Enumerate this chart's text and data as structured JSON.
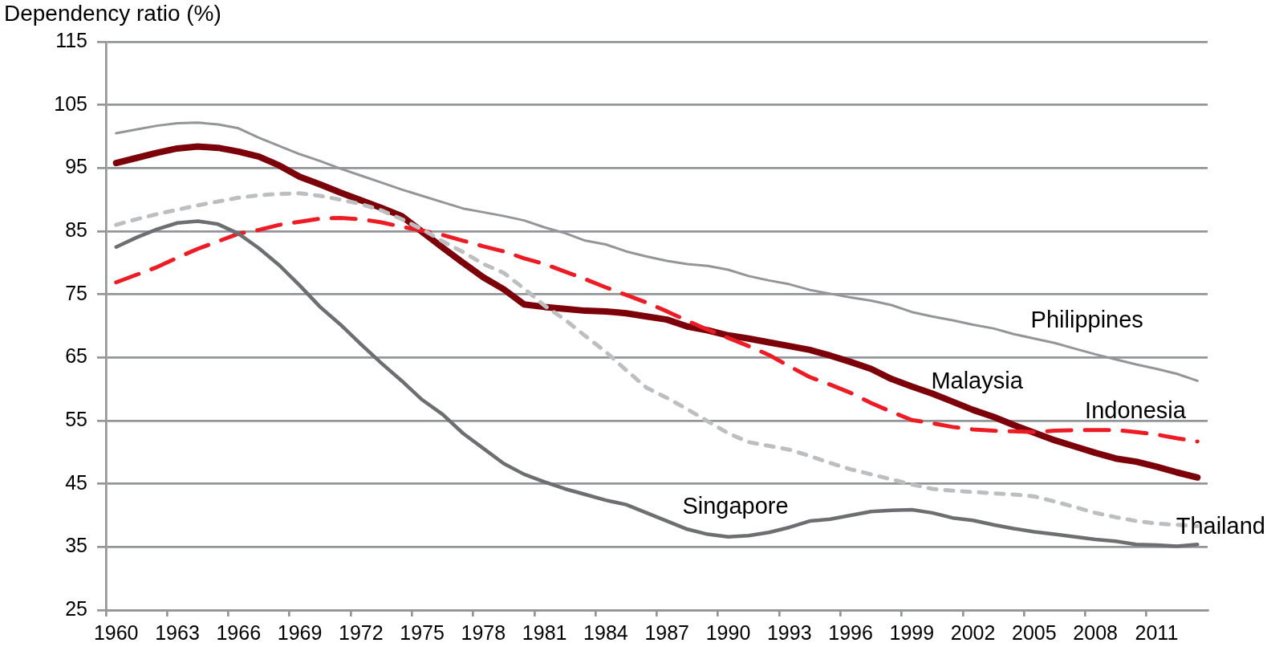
{
  "chart_data": {
    "type": "line",
    "ylabel": "Dependency ratio (%)",
    "categories": [
      "1960",
      null,
      null,
      "1963",
      null,
      null,
      "1966",
      null,
      null,
      "1969",
      null,
      null,
      "1972",
      null,
      null,
      "1975",
      null,
      null,
      "1978",
      null,
      null,
      "1981",
      null,
      null,
      "1984",
      null,
      null,
      "1987",
      null,
      null,
      "1990",
      null,
      null,
      "1993",
      null,
      null,
      "1996",
      null,
      null,
      "1999",
      null,
      null,
      "2002",
      null,
      null,
      "2005",
      null,
      null,
      "2008",
      null,
      null,
      "2011",
      null,
      null
    ],
    "series": [
      {
        "name": "Philippines",
        "color": "#939598",
        "values": [
          100.5,
          101.1,
          101.7,
          102.1,
          102.2,
          101.9,
          101.3,
          99.8,
          98.5,
          97.2,
          96.1,
          94.9,
          93.8,
          92.7,
          91.6,
          90.6,
          89.6,
          88.6,
          88.0,
          87.4,
          86.7,
          85.6,
          84.7,
          83.5,
          82.9,
          81.8,
          81.0,
          80.3,
          79.8,
          79.5,
          78.9,
          77.9,
          77.2,
          76.6,
          75.7,
          75.1,
          74.5,
          74.0,
          73.3,
          72.2,
          71.5,
          70.9,
          70.2,
          69.6,
          68.7,
          68.0,
          67.3,
          66.4,
          65.5,
          64.7,
          63.9,
          63.2,
          62.4,
          61.3
        ]
      },
      {
        "name": "Malaysia",
        "color": "#7b0009",
        "values": [
          95.8,
          96.6,
          97.4,
          98.1,
          98.4,
          98.2,
          97.6,
          96.8,
          95.4,
          93.6,
          92.4,
          91.1,
          89.9,
          88.7,
          87.4,
          84.9,
          82.4,
          80.0,
          77.7,
          75.8,
          73.4,
          73.0,
          72.7,
          72.4,
          72.3,
          72.0,
          71.5,
          71.0,
          69.9,
          69.3,
          68.5,
          68.0,
          67.4,
          66.8,
          66.2,
          65.3,
          64.3,
          63.2,
          61.6,
          60.4,
          59.3,
          58.0,
          56.7,
          55.6,
          54.3,
          53.1,
          51.9,
          50.9,
          49.9,
          49.0,
          48.5,
          47.7,
          46.8,
          46.0
        ]
      },
      {
        "name": "Indonesia",
        "color": "#ed1c24",
        "line_style": "dashed",
        "values": [
          76.9,
          78.1,
          79.3,
          80.8,
          82.2,
          83.4,
          84.6,
          85.2,
          86.0,
          86.5,
          87.0,
          87.1,
          86.9,
          86.4,
          85.7,
          85.1,
          84.4,
          83.5,
          82.6,
          81.8,
          80.7,
          79.8,
          78.6,
          77.4,
          76.1,
          74.9,
          73.7,
          72.3,
          70.8,
          69.4,
          68.1,
          66.8,
          65.4,
          63.6,
          61.9,
          60.7,
          59.4,
          57.8,
          56.4,
          55.1,
          54.6,
          54.0,
          53.6,
          53.4,
          53.3,
          53.2,
          53.4,
          53.5,
          53.5,
          53.5,
          53.2,
          52.8,
          52.2,
          51.7
        ]
      },
      {
        "name": "Thailand",
        "color": "#bcbec0",
        "line_style": "dotted",
        "values": [
          86.0,
          86.9,
          87.7,
          88.4,
          89.1,
          89.7,
          90.3,
          90.7,
          90.9,
          91.0,
          90.6,
          90.0,
          89.3,
          88.3,
          86.9,
          85.3,
          83.4,
          81.7,
          79.8,
          78.4,
          75.9,
          73.2,
          71.0,
          68.4,
          65.9,
          63.0,
          60.2,
          58.6,
          56.8,
          54.9,
          53.0,
          51.6,
          51.0,
          50.4,
          49.4,
          48.3,
          47.3,
          46.5,
          45.7,
          44.9,
          44.2,
          43.9,
          43.7,
          43.5,
          43.3,
          43.0,
          42.2,
          41.3,
          40.4,
          39.7,
          39.1,
          38.7,
          38.5,
          38.3
        ]
      },
      {
        "name": "Singapore",
        "color": "#6d6e71",
        "values": [
          82.5,
          84.0,
          85.3,
          86.3,
          86.6,
          86.1,
          84.6,
          82.3,
          79.6,
          76.4,
          73.0,
          70.2,
          67.1,
          64.1,
          61.3,
          58.3,
          56.0,
          53.0,
          50.6,
          48.2,
          46.5,
          45.3,
          44.2,
          43.3,
          42.4,
          41.7,
          40.4,
          39.1,
          37.8,
          37.0,
          36.6,
          36.8,
          37.3,
          38.1,
          39.1,
          39.4,
          40.0,
          40.6,
          40.8,
          40.9,
          40.4,
          39.6,
          39.2,
          38.5,
          37.9,
          37.4,
          37.0,
          36.6,
          36.2,
          35.9,
          35.4,
          35.3,
          35.1,
          35.4
        ]
      }
    ],
    "ylim": [
      25,
      115
    ],
    "yticks": [
      25,
      35,
      45,
      55,
      65,
      75,
      85,
      95,
      105,
      115
    ],
    "grid": "y",
    "legend": false,
    "marker": "none"
  }
}
